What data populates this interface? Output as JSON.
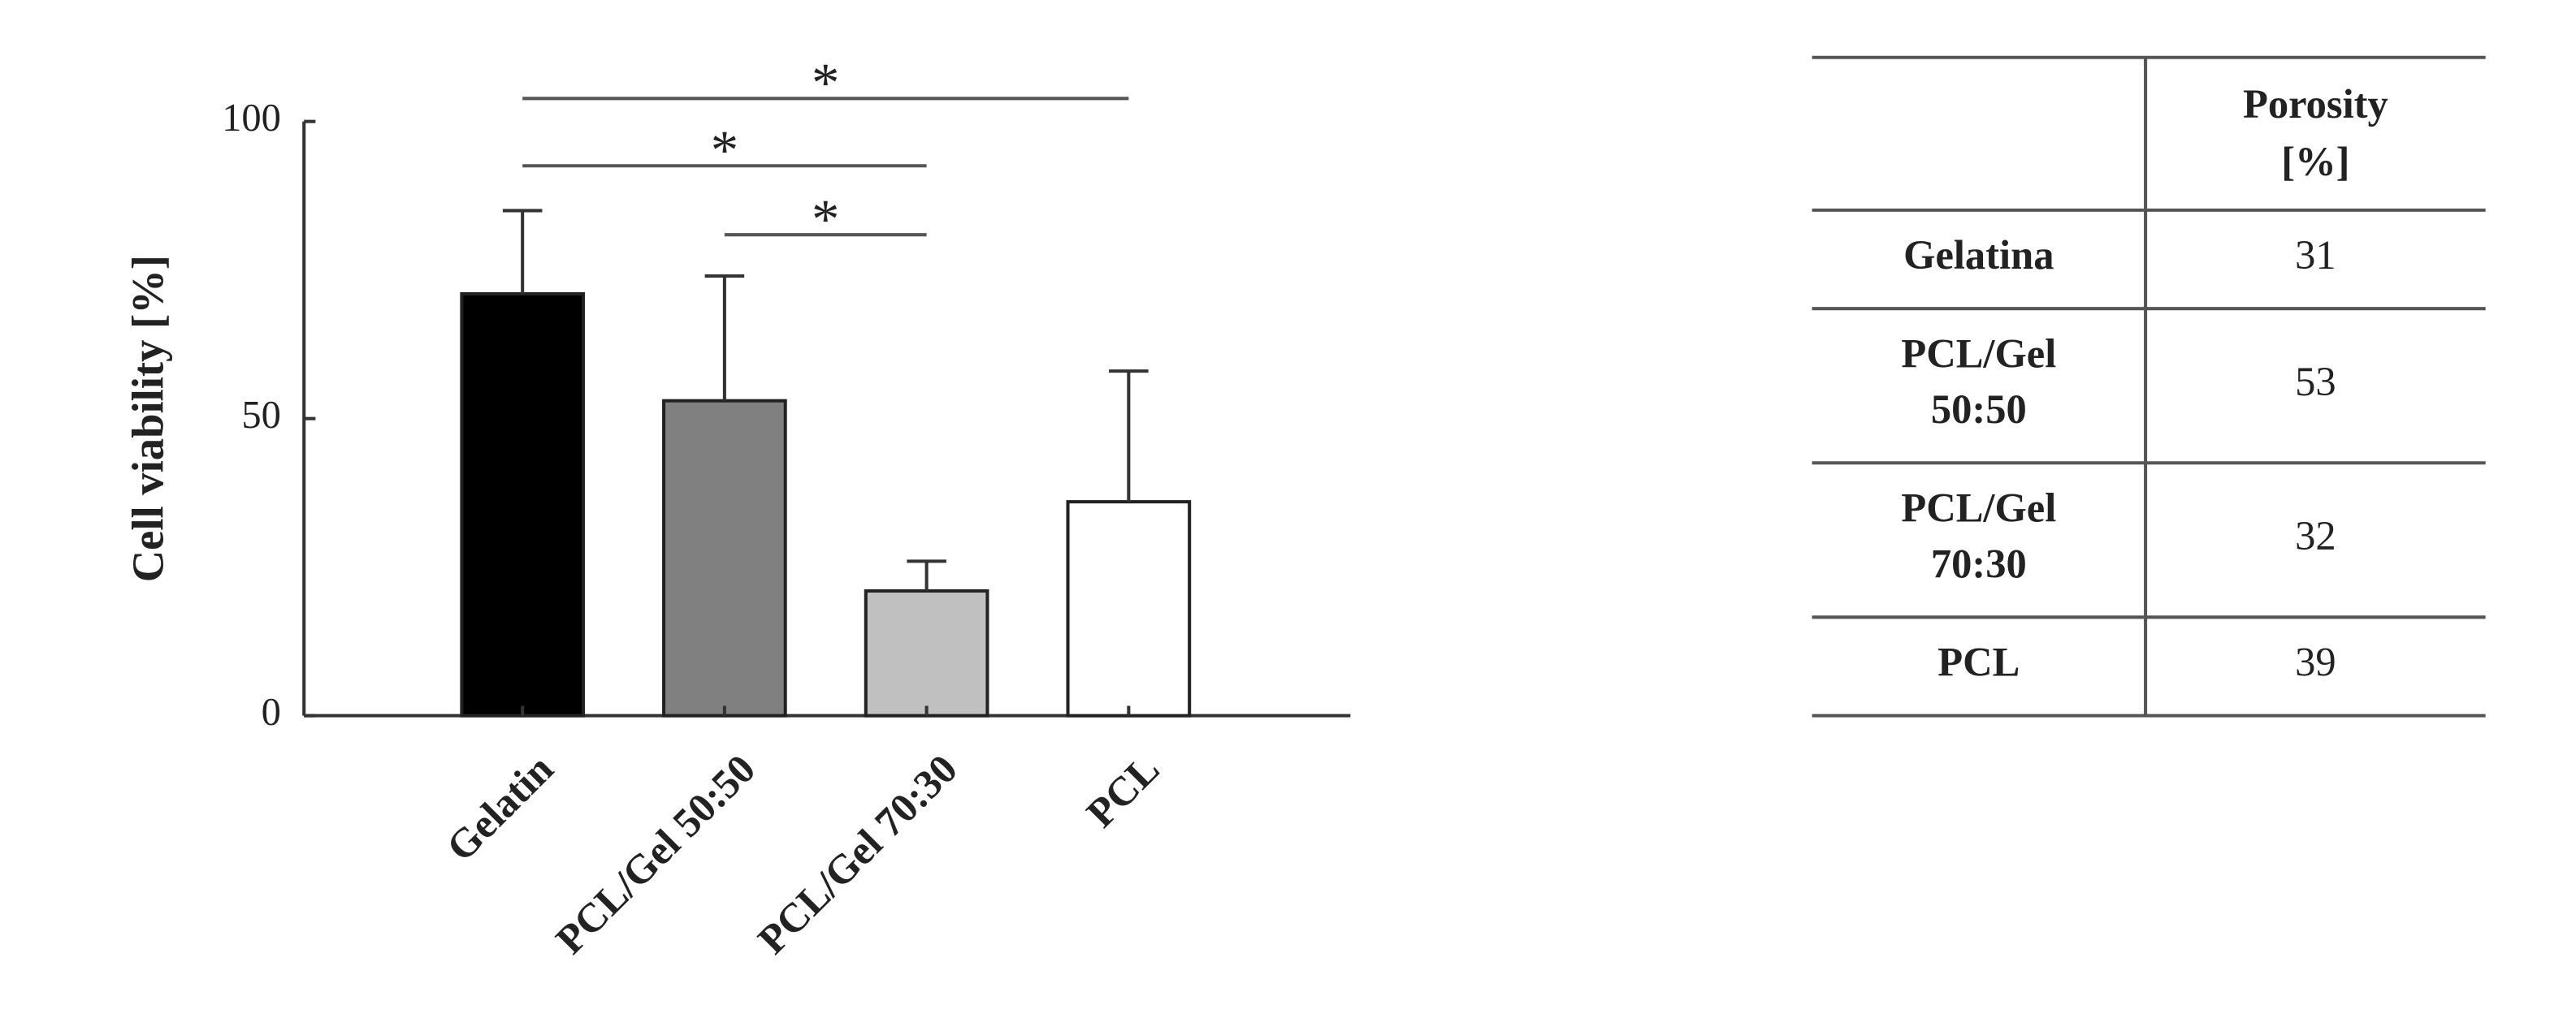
{
  "chart_data": {
    "type": "bar",
    "ylabel": "Cell viability [%]",
    "categories": [
      "Gelatin",
      "PCL/Gel 50:50",
      "PCL/Gel 70:30",
      "PCL"
    ],
    "values": [
      71,
      53,
      21,
      36
    ],
    "errors": [
      14,
      21,
      5,
      22
    ],
    "colors": [
      "#000000",
      "#808080",
      "#c0c0c0",
      "#ffffff"
    ],
    "ylim": [
      0,
      100
    ],
    "yticks": [
      0,
      50,
      100
    ],
    "annotations": [
      {
        "text": "*",
        "between": [
          "Gelatin",
          "PCL"
        ]
      },
      {
        "text": "*",
        "between": [
          "Gelatin",
          "PCL/Gel 70:30"
        ]
      },
      {
        "text": "*",
        "between": [
          "PCL/Gel 50:50",
          "PCL/Gel 70:30"
        ]
      }
    ]
  },
  "table": {
    "header": [
      "Porosity",
      "[%]"
    ],
    "rows": [
      {
        "label": [
          "Gelatina"
        ],
        "porosity": 31
      },
      {
        "label": [
          "PCL/Gel",
          "50:50"
        ],
        "porosity": 53
      },
      {
        "label": [
          "PCL/Gel",
          "70:30"
        ],
        "porosity": 32
      },
      {
        "label": [
          "PCL"
        ],
        "porosity": 39
      }
    ]
  }
}
